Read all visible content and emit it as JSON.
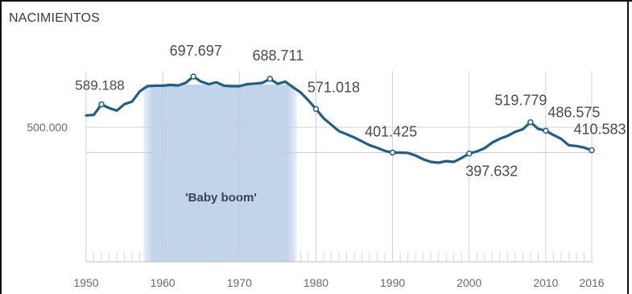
{
  "chart_data": {
    "type": "line",
    "title": "NACIMIENTOS",
    "xlabel": "",
    "ylabel": "",
    "xlim": [
      1950,
      2016
    ],
    "x_ticks": [
      "1950",
      "1960",
      "1970",
      "1980",
      "1990",
      "2000",
      "2010",
      "2016"
    ],
    "y_tick_label": "500.000",
    "shaded_region": {
      "label": "'Baby boom'",
      "x_start": 1957.5,
      "x_end": 1977.5
    },
    "series": [
      {
        "color": "#1f5f85",
        "x": [
          1950,
          1951,
          1952,
          1953,
          1954,
          1955,
          1956,
          1957,
          1958,
          1959,
          1960,
          1961,
          1962,
          1963,
          1964,
          1965,
          1966,
          1967,
          1968,
          1969,
          1970,
          1971,
          1972,
          1973,
          1974,
          1975,
          1976,
          1977,
          1978,
          1979,
          1980,
          1981,
          1982,
          1983,
          1984,
          1985,
          1986,
          1987,
          1988,
          1989,
          1990,
          1991,
          1992,
          1993,
          1994,
          1995,
          1996,
          1997,
          1998,
          1999,
          2000,
          2001,
          2002,
          2003,
          2004,
          2005,
          2006,
          2007,
          2008,
          2009,
          2010,
          2011,
          2012,
          2013,
          2014,
          2015,
          2016
        ],
        "values": [
          546000,
          548000,
          589188,
          575000,
          565000,
          590000,
          600000,
          640000,
          660000,
          662000,
          662000,
          665000,
          663000,
          673000,
          697697,
          678000,
          668000,
          675000,
          662000,
          660000,
          660000,
          668000,
          670000,
          673000,
          688711,
          669000,
          678000,
          656000,
          636000,
          605000,
          571018,
          535000,
          510000,
          485000,
          473000,
          460000,
          445000,
          430000,
          420000,
          408000,
          401425,
          401000,
          400000,
          390000,
          375000,
          365000,
          362000,
          368000,
          365000,
          380000,
          397632,
          406000,
          418000,
          440000,
          455000,
          466000,
          482000,
          492000,
          519779,
          494000,
          486575,
          470000,
          455000,
          430000,
          427000,
          421000,
          410583
        ]
      }
    ],
    "annotated_points": [
      {
        "x": 1952,
        "label": "589.188"
      },
      {
        "x": 1964,
        "label": "697.697"
      },
      {
        "x": 1974,
        "label": "688.711"
      },
      {
        "x": 1980,
        "label": "571.018"
      },
      {
        "x": 1990,
        "label": "401.425"
      },
      {
        "x": 2000,
        "label": "397.632"
      },
      {
        "x": 2008,
        "label": "519.779"
      },
      {
        "x": 2010,
        "label": "486.575"
      },
      {
        "x": 2016,
        "label": "410.583"
      }
    ],
    "colors": {
      "line": "#1f5f85",
      "shade": "#c2d4ea",
      "grid": "#c8c8c8",
      "minor_tick": "#d0d0d0"
    }
  }
}
